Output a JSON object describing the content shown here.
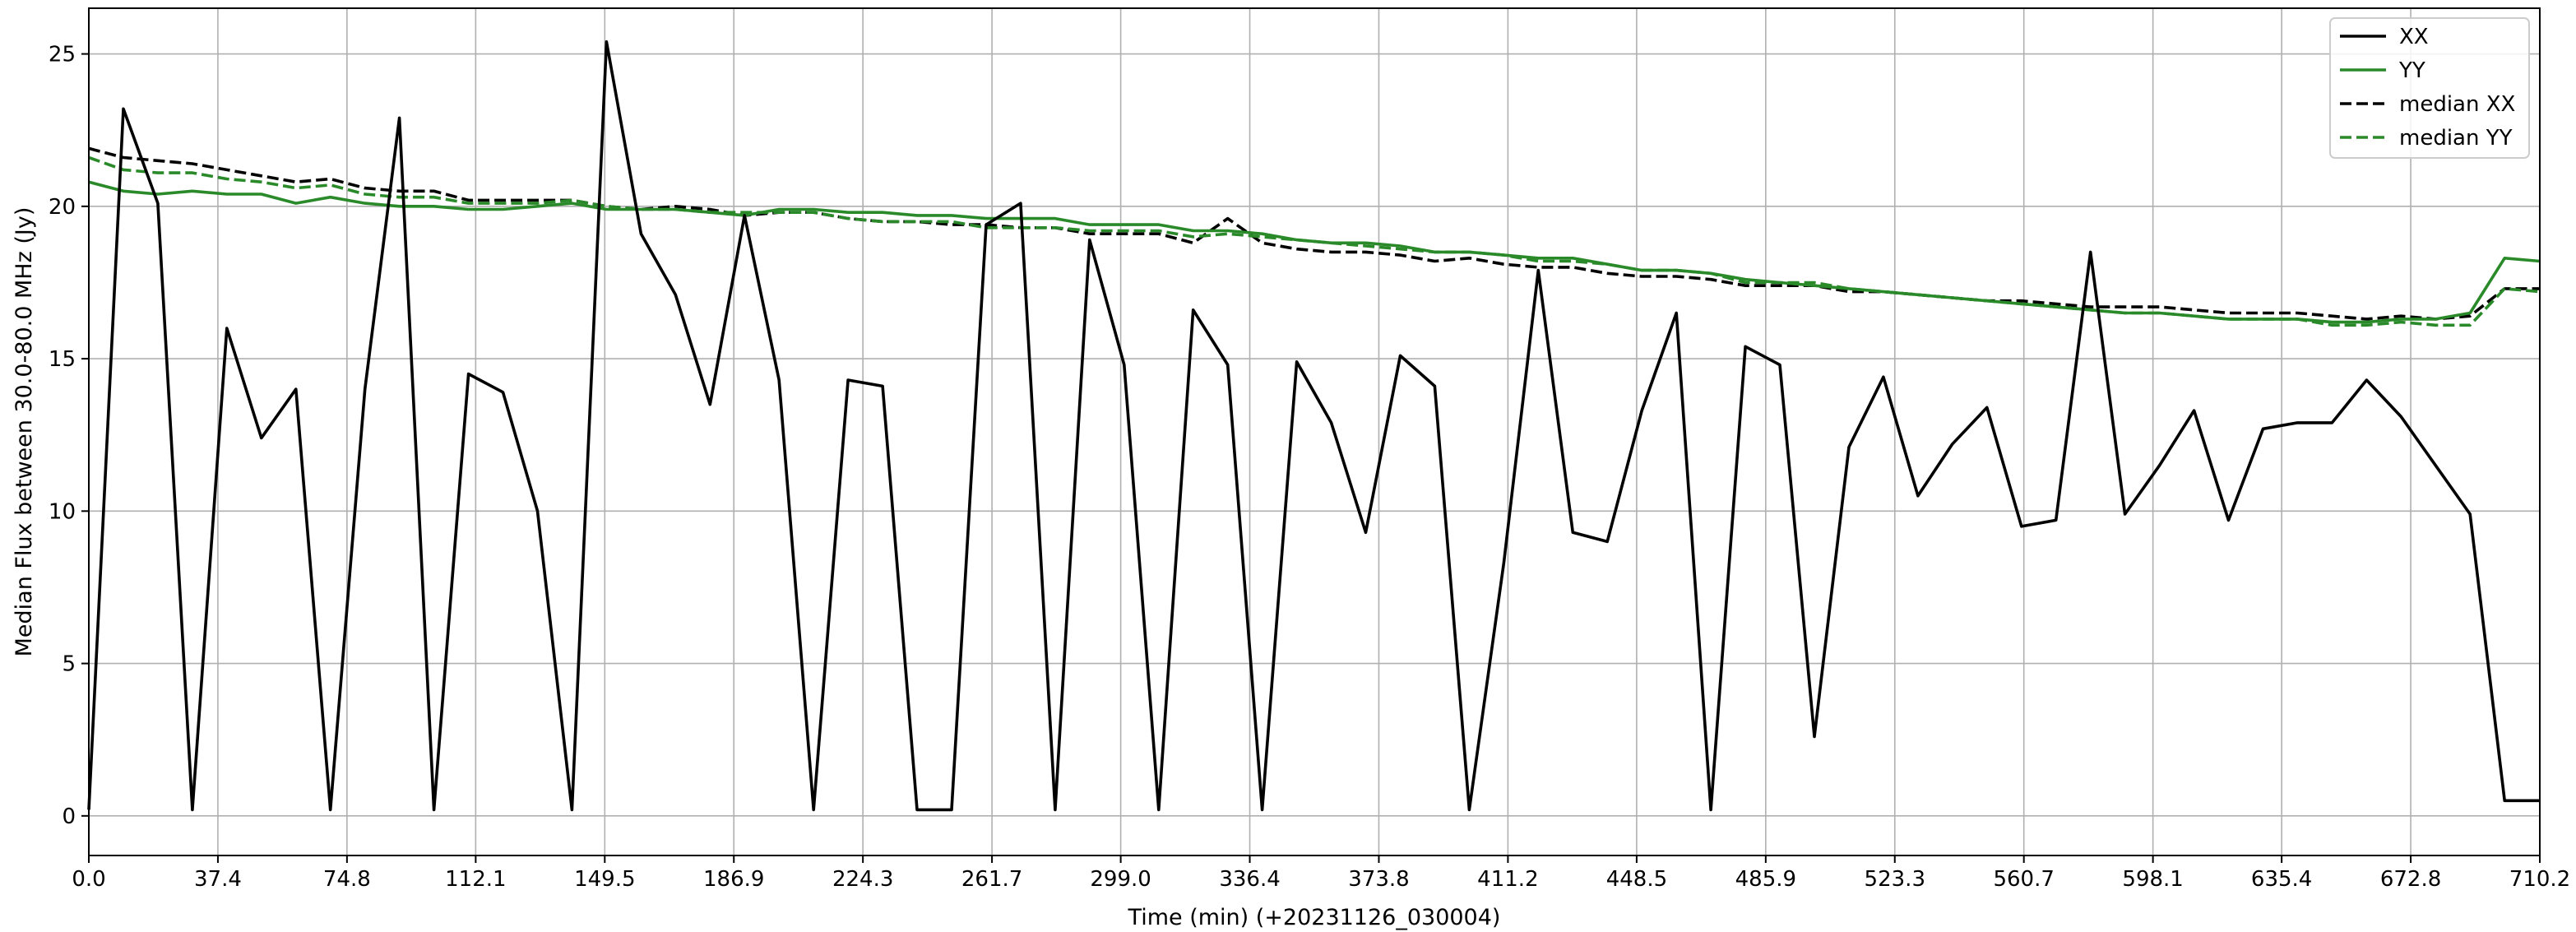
{
  "chart_data": {
    "type": "line",
    "xlabel": "Time (min) (+20231126_030004)",
    "ylabel": "Median Flux between 30.0-80.0 MHz  (Jy)",
    "xlim": [
      0.0,
      710.2
    ],
    "ylim": [
      -1.3,
      26.5
    ],
    "x_ticks": [
      "0.0",
      "37.4",
      "74.8",
      "112.1",
      "149.5",
      "186.9",
      "224.3",
      "261.7",
      "299.0",
      "336.4",
      "373.8",
      "411.2",
      "448.5",
      "485.9",
      "523.3",
      "560.7",
      "598.1",
      "635.4",
      "672.8",
      "710.2"
    ],
    "y_ticks": [
      0,
      5,
      10,
      15,
      20,
      25
    ],
    "grid": true,
    "legend_position": "upper right",
    "x": [
      0,
      10,
      20,
      30,
      40,
      50,
      60,
      70,
      80,
      90,
      100,
      110,
      120,
      130,
      140,
      150,
      160,
      170,
      180,
      190,
      200,
      210,
      220,
      230,
      240,
      250,
      260,
      270,
      280,
      290,
      300,
      310,
      320,
      330,
      340,
      350,
      360,
      370,
      380,
      390,
      400,
      410,
      420,
      430,
      440,
      450,
      460,
      470,
      480,
      490,
      500,
      510,
      520,
      530,
      540,
      550,
      560,
      570,
      580,
      590,
      600,
      610,
      620,
      630,
      640,
      650,
      660,
      670,
      680,
      690,
      700,
      710.2
    ],
    "series": [
      {
        "name": "XX",
        "color": "#000000",
        "dash": "solid",
        "values": [
          0.2,
          23.2,
          20.1,
          0.2,
          16.0,
          12.4,
          14.0,
          0.2,
          14.0,
          22.9,
          0.2,
          14.5,
          13.9,
          10.0,
          0.2,
          25.4,
          19.1,
          17.1,
          13.5,
          19.7,
          14.3,
          0.2,
          14.3,
          14.1,
          0.2,
          0.2,
          19.4,
          20.1,
          0.2,
          18.9,
          14.8,
          0.2,
          16.6,
          14.8,
          0.2,
          14.9,
          12.9,
          9.3,
          15.1,
          14.1,
          0.2,
          8.3,
          17.9,
          9.3,
          9.0,
          13.3,
          16.5,
          0.2,
          15.4,
          14.8,
          2.6,
          12.1,
          14.4,
          10.5,
          12.2,
          13.4,
          9.5,
          9.7,
          18.5,
          9.9,
          11.5,
          13.3,
          9.7,
          12.7,
          12.9,
          12.9,
          14.3,
          13.1,
          11.5,
          9.9,
          0.5,
          0.5
        ]
      },
      {
        "name": "YY",
        "color": "#2a8a2a",
        "dash": "solid",
        "values": [
          20.8,
          20.5,
          20.4,
          20.5,
          20.4,
          20.4,
          20.1,
          20.3,
          20.1,
          20.0,
          20.0,
          19.9,
          19.9,
          20.0,
          20.1,
          19.9,
          19.9,
          19.9,
          19.8,
          19.7,
          19.9,
          19.9,
          19.8,
          19.8,
          19.7,
          19.7,
          19.6,
          19.6,
          19.6,
          19.4,
          19.4,
          19.4,
          19.2,
          19.2,
          19.1,
          18.9,
          18.8,
          18.8,
          18.7,
          18.5,
          18.5,
          18.4,
          18.3,
          18.3,
          18.1,
          17.9,
          17.9,
          17.8,
          17.6,
          17.5,
          17.4,
          17.3,
          17.2,
          17.1,
          17.0,
          16.9,
          16.8,
          16.7,
          16.6,
          16.5,
          16.5,
          16.4,
          16.3,
          16.3,
          16.3,
          16.2,
          16.2,
          16.3,
          16.3,
          16.5,
          18.3,
          18.2
        ]
      },
      {
        "name": "median XX",
        "color": "#000000",
        "dash": "dashed",
        "values": [
          21.9,
          21.6,
          21.5,
          21.4,
          21.2,
          21.0,
          20.8,
          20.9,
          20.6,
          20.5,
          20.5,
          20.2,
          20.2,
          20.2,
          20.2,
          20.0,
          19.9,
          20.0,
          19.9,
          19.7,
          19.8,
          19.8,
          19.6,
          19.5,
          19.5,
          19.4,
          19.4,
          19.3,
          19.3,
          19.1,
          19.1,
          19.1,
          18.8,
          19.6,
          18.8,
          18.6,
          18.5,
          18.5,
          18.4,
          18.2,
          18.3,
          18.1,
          18.0,
          18.0,
          17.8,
          17.7,
          17.7,
          17.6,
          17.4,
          17.4,
          17.4,
          17.2,
          17.2,
          17.1,
          17.0,
          16.9,
          16.9,
          16.8,
          16.7,
          16.7,
          16.7,
          16.6,
          16.5,
          16.5,
          16.5,
          16.4,
          16.3,
          16.4,
          16.3,
          16.4,
          17.3,
          17.3
        ]
      },
      {
        "name": "median YY",
        "color": "#2a8a2a",
        "dash": "dashed",
        "values": [
          21.6,
          21.2,
          21.1,
          21.1,
          20.9,
          20.8,
          20.6,
          20.7,
          20.4,
          20.3,
          20.3,
          20.1,
          20.1,
          20.1,
          20.2,
          20.0,
          19.9,
          19.9,
          19.8,
          19.8,
          19.8,
          19.8,
          19.6,
          19.5,
          19.5,
          19.5,
          19.3,
          19.3,
          19.3,
          19.2,
          19.2,
          19.2,
          19.0,
          19.1,
          19.0,
          18.9,
          18.8,
          18.7,
          18.6,
          18.5,
          18.5,
          18.4,
          18.2,
          18.2,
          18.1,
          17.9,
          17.9,
          17.8,
          17.5,
          17.5,
          17.5,
          17.3,
          17.2,
          17.1,
          17.0,
          16.9,
          16.8,
          16.7,
          16.6,
          16.5,
          16.5,
          16.4,
          16.3,
          16.3,
          16.3,
          16.1,
          16.1,
          16.2,
          16.1,
          16.1,
          17.3,
          17.2
        ]
      }
    ]
  }
}
